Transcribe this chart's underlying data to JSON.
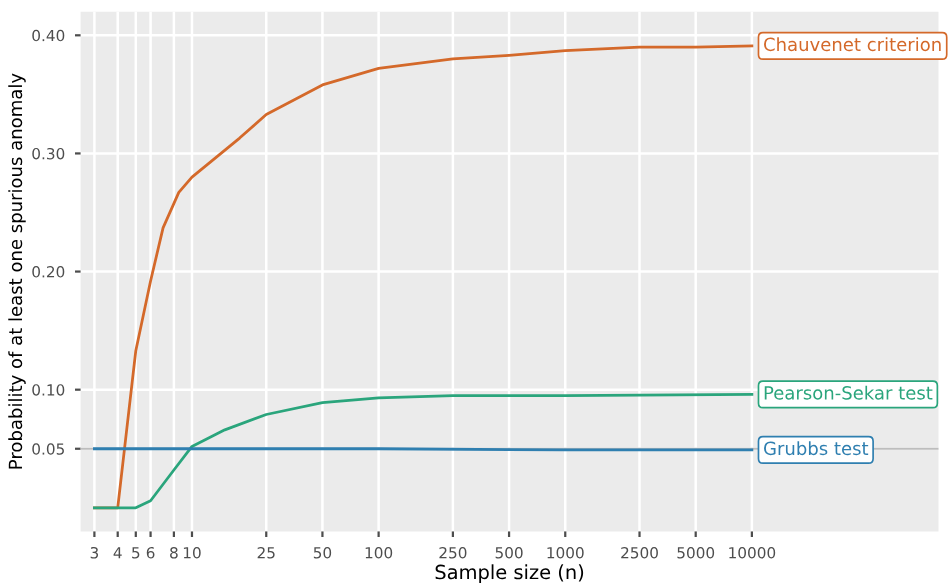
{
  "chart_data": {
    "type": "line",
    "xlabel": "Sample size (n)",
    "ylabel": "Probability of at least one spurious anomaly",
    "log": "x",
    "xlim": [
      2.53,
      100000
    ],
    "ylim": [
      -0.02,
      0.42
    ],
    "xticks": [
      3,
      4,
      5,
      6,
      8,
      10,
      25,
      50,
      100,
      250,
      500,
      1000,
      2500,
      5000,
      10000
    ],
    "yticks": [
      {
        "value": 0.05,
        "label": "0.05"
      },
      {
        "value": 0.1,
        "label": "0.10"
      },
      {
        "value": 0.2,
        "label": "0.20"
      },
      {
        "value": 0.3,
        "label": "0.30"
      },
      {
        "value": 0.4,
        "label": "0.40"
      }
    ],
    "grid": true,
    "legend": false,
    "marker": "none",
    "line_style": "solid",
    "ref_lines": [
      {
        "axis": "y",
        "value": 0.05,
        "color": "#bdbdbd"
      }
    ],
    "series": [
      {
        "name": "Chauvenet criterion",
        "color": "#d4692a",
        "x": [
          3,
          4,
          5,
          6,
          7,
          8.5,
          10,
          18,
          25,
          50,
          100,
          250,
          500,
          1000,
          2500,
          5000,
          10000
        ],
        "values": [
          0,
          0,
          0.133,
          0.192,
          0.237,
          0.267,
          0.28,
          0.313,
          0.333,
          0.358,
          0.372,
          0.38,
          0.383,
          0.387,
          0.39,
          0.39,
          0.391
        ]
      },
      {
        "name": "Pearson-Sekar test",
        "color": "#2aa57c",
        "x": [
          3,
          4,
          5,
          6,
          8,
          10,
          15,
          25,
          50,
          100,
          250,
          1000,
          10000
        ],
        "values": [
          0,
          0,
          0,
          0.006,
          0.032,
          0.052,
          0.066,
          0.079,
          0.089,
          0.093,
          0.095,
          0.095,
          0.096
        ]
      },
      {
        "name": "Grubbs test",
        "color": "#2f7fb0",
        "x": [
          3,
          10,
          100,
          1000,
          10000
        ],
        "values": [
          0.05,
          0.05,
          0.05,
          0.049,
          0.049
        ]
      }
    ]
  }
}
